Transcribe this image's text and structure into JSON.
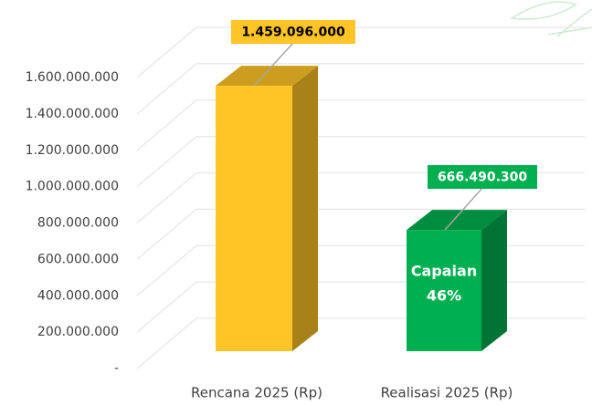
{
  "chart_data": {
    "type": "bar3d",
    "categories": [
      "Rencana 2025 (Rp)",
      "Realisasi 2025 (Rp)"
    ],
    "values": [
      1459096000,
      666490300
    ],
    "value_labels": [
      "1.459.096.000",
      "666.490.300"
    ],
    "colors": [
      "#FFC425",
      "#00B050"
    ],
    "label_text_colors": [
      "#000000",
      "#FFFFFF"
    ],
    "annotation": [
      "Capaian",
      "46%"
    ],
    "ylim": [
      0,
      1600000000
    ],
    "yticks": [
      {
        "value": 0,
        "label": "-"
      },
      {
        "value": 200000000,
        "label": "200.000.000"
      },
      {
        "value": 400000000,
        "label": "400.000.000"
      },
      {
        "value": 600000000,
        "label": "600.000.000"
      },
      {
        "value": 800000000,
        "label": "800.000.000"
      },
      {
        "value": 1000000000,
        "label": "1.000.000.000"
      },
      {
        "value": 1200000000,
        "label": "1.200.000.000"
      },
      {
        "value": 1400000000,
        "label": "1.400.000.000"
      },
      {
        "value": 1600000000,
        "label": "1.600.000.000"
      }
    ],
    "grid": true
  }
}
